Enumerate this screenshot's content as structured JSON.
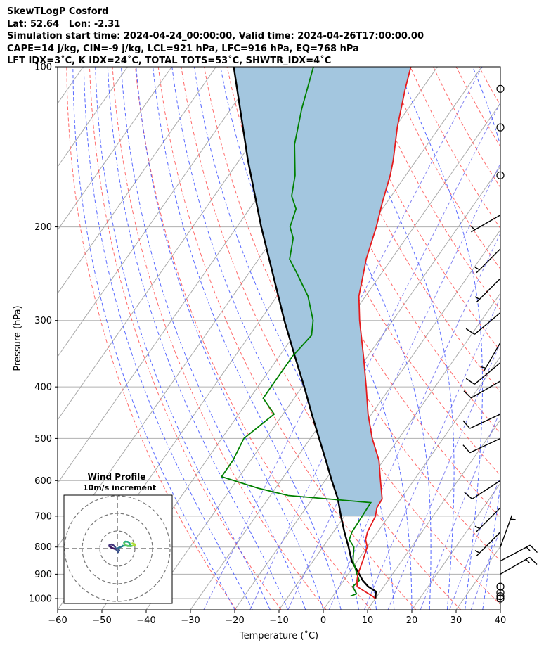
{
  "header": {
    "line1": "SkewTLogP Cosford",
    "line2": "Lat: 52.64   Lon: -2.31",
    "line3": "Simulation start time: 2024-04-24_00:00:00, Valid time: 2024-04-26T17:00:00.00",
    "line4": "CAPE=14 j/kg, CIN=-9 j/kg, LCL=921 hPa, LFC=916 hPa, EQ=768 hPa",
    "line5": "LFT IDX=3˚C, K IDX=24˚C, TOTAL TOTS=53˚C, SHWTR_IDX=4˚C"
  },
  "chart_data": {
    "type": "line",
    "subtype": "skew-t log-p",
    "xlabel": "Temperature (˚C)",
    "ylabel": "Pressure (hPa)",
    "xlim": [
      -60,
      40
    ],
    "ylim": [
      1050,
      100
    ],
    "y_scale": "log",
    "xticks": [
      -60,
      -50,
      -40,
      -30,
      -20,
      -10,
      0,
      10,
      20,
      30,
      40
    ],
    "xtick_labels": [
      "−60",
      "−50",
      "−40",
      "−30",
      "−20",
      "−10",
      "0",
      "10",
      "20",
      "30",
      "40"
    ],
    "yticks": [
      100,
      200,
      300,
      400,
      500,
      600,
      700,
      800,
      900,
      1000
    ],
    "ytick_labels": [
      "100",
      "200",
      "300",
      "400",
      "500",
      "600",
      "700",
      "800",
      "900",
      "1000"
    ],
    "grid": true,
    "colors": {
      "temperature": "#e41a1c",
      "dewpoint": "#008000",
      "parcel": "#000000",
      "cape_fill": "#a3c6df",
      "dry_adiabat": "#ff5050",
      "moist_adiabat": "#3c50ff",
      "mixing_ratio": "#6666ee",
      "isotherm": "#aaaaaa"
    },
    "series": [
      {
        "role": "temperature",
        "points": [
          [
            1000,
            10
          ],
          [
            990,
            9
          ],
          [
            970,
            6.5
          ],
          [
            950,
            4
          ],
          [
            925,
            3
          ],
          [
            900,
            2.2
          ],
          [
            850,
            1.2
          ],
          [
            800,
            0
          ],
          [
            775,
            -1.5
          ],
          [
            750,
            -2.3
          ],
          [
            700,
            -3
          ],
          [
            675,
            -4
          ],
          [
            650,
            -4.2
          ],
          [
            600,
            -7.5
          ],
          [
            550,
            -11
          ],
          [
            500,
            -16
          ],
          [
            450,
            -20.8
          ],
          [
            400,
            -25.5
          ],
          [
            350,
            -31
          ],
          [
            300,
            -37.5
          ],
          [
            270,
            -41.5
          ],
          [
            250,
            -43.5
          ],
          [
            230,
            -45.7
          ],
          [
            200,
            -48.5
          ],
          [
            180,
            -51
          ],
          [
            160,
            -53.5
          ],
          [
            150,
            -55.2
          ],
          [
            130,
            -59.5
          ],
          [
            110,
            -63.8
          ],
          [
            100,
            -66
          ]
        ]
      },
      {
        "role": "dewpoint",
        "points": [
          [
            990,
            4
          ],
          [
            980,
            5
          ],
          [
            950,
            3
          ],
          [
            925,
            3.5
          ],
          [
            900,
            2
          ],
          [
            850,
            -1
          ],
          [
            800,
            -3
          ],
          [
            775,
            -5.2
          ],
          [
            750,
            -5.8
          ],
          [
            700,
            -6
          ],
          [
            660,
            -6.2
          ],
          [
            640,
            -26
          ],
          [
            620,
            -34
          ],
          [
            590,
            -44
          ],
          [
            550,
            -44
          ],
          [
            500,
            -45
          ],
          [
            450,
            -42
          ],
          [
            420,
            -47
          ],
          [
            400,
            -47
          ],
          [
            350,
            -47
          ],
          [
            320,
            -46
          ],
          [
            300,
            -48
          ],
          [
            270,
            -53
          ],
          [
            245,
            -59
          ],
          [
            230,
            -63
          ],
          [
            210,
            -65.5
          ],
          [
            200,
            -68
          ],
          [
            185,
            -69.5
          ],
          [
            175,
            -72.5
          ],
          [
            160,
            -75
          ],
          [
            140,
            -80
          ],
          [
            120,
            -84
          ],
          [
            100,
            -88
          ]
        ]
      },
      {
        "role": "parcel",
        "points": [
          [
            1000,
            10
          ],
          [
            970,
            9
          ],
          [
            950,
            6.5
          ],
          [
            925,
            4.3
          ],
          [
            900,
            2.5
          ],
          [
            850,
            -1.3
          ],
          [
            800,
            -4.2
          ],
          [
            750,
            -7.5
          ],
          [
            700,
            -10.8
          ],
          [
            650,
            -14.2
          ],
          [
            600,
            -18.5
          ],
          [
            550,
            -23
          ],
          [
            500,
            -28
          ],
          [
            450,
            -33.5
          ],
          [
            400,
            -39.5
          ],
          [
            350,
            -46.5
          ],
          [
            300,
            -54.5
          ],
          [
            250,
            -63.5
          ],
          [
            200,
            -74.5
          ],
          [
            150,
            -88
          ],
          [
            100,
            -106
          ]
        ]
      }
    ],
    "wind_barbs": [
      {
        "p": 1000,
        "kind": "calm"
      },
      {
        "p": 990,
        "kind": "calm"
      },
      {
        "p": 975,
        "kind": "calm"
      },
      {
        "p": 950,
        "kind": "calm"
      },
      {
        "p": 900,
        "kind": "barb",
        "dir": 60,
        "knots": 15
      },
      {
        "p": 850,
        "kind": "barb",
        "dir": 62,
        "knots": 15
      },
      {
        "p": 800,
        "kind": "barb",
        "dir": 20,
        "knots": 5
      },
      {
        "p": 750,
        "kind": "barb",
        "dir": 225,
        "knots": 5
      },
      {
        "p": 675,
        "kind": "barb",
        "dir": 225,
        "knots": 5
      },
      {
        "p": 600,
        "kind": "barb",
        "dir": 237,
        "knots": 10
      },
      {
        "p": 500,
        "kind": "barb",
        "dir": 245,
        "knots": 10
      },
      {
        "p": 450,
        "kind": "barb",
        "dir": 245,
        "knots": 10
      },
      {
        "p": 390,
        "kind": "barb",
        "dir": 240,
        "knots": 10
      },
      {
        "p": 360,
        "kind": "barb",
        "dir": 230,
        "knots": 10
      },
      {
        "p": 330,
        "kind": "barb",
        "dir": 210,
        "knots": 5
      },
      {
        "p": 290,
        "kind": "barb",
        "dir": 230,
        "knots": 10
      },
      {
        "p": 250,
        "kind": "barb",
        "dir": 225,
        "knots": 5
      },
      {
        "p": 220,
        "kind": "barb",
        "dir": 225,
        "knots": 5
      },
      {
        "p": 190,
        "kind": "barb",
        "dir": 240,
        "knots": 5
      },
      {
        "p": 160,
        "kind": "calm"
      },
      {
        "p": 130,
        "kind": "calm"
      },
      {
        "p": 110,
        "kind": "calm"
      }
    ],
    "hodograph": {
      "title": "Wind Profile",
      "subtitle": "10m/s increment",
      "rings_ms": [
        10,
        20,
        30
      ],
      "points": [
        [
          -1,
          -0.5
        ],
        [
          -2.2,
          0
        ],
        [
          -3.5,
          0.5
        ],
        [
          -4.6,
          1.2
        ],
        [
          -5.2,
          1.6
        ],
        [
          -5,
          2.3
        ],
        [
          -3.5,
          2.6
        ],
        [
          -2.5,
          2.0
        ],
        [
          -1.5,
          1.2
        ],
        [
          -0.5,
          -0.8
        ],
        [
          0.5,
          -2.2
        ],
        [
          1.2,
          -1.2
        ],
        [
          0.5,
          0.3
        ],
        [
          1.3,
          0.8
        ],
        [
          2.0,
          1.0
        ],
        [
          2.6,
          1.2
        ],
        [
          3.2,
          1.5
        ],
        [
          3.2,
          1.8
        ],
        [
          5.8,
          1.9
        ],
        [
          7.2,
          1.6
        ],
        [
          8.0,
          2.5
        ],
        [
          7.6,
          3.6
        ],
        [
          6.5,
          4.3
        ],
        [
          5.0,
          4.4
        ],
        [
          4.2,
          3.6
        ],
        [
          4.8,
          2.5
        ],
        [
          6.5,
          1.6
        ],
        [
          8.5,
          1.5
        ],
        [
          10,
          1.9
        ],
        [
          11.3,
          1.9
        ],
        [
          11.0,
          2.7
        ],
        [
          9.5,
          3.3
        ]
      ]
    }
  }
}
